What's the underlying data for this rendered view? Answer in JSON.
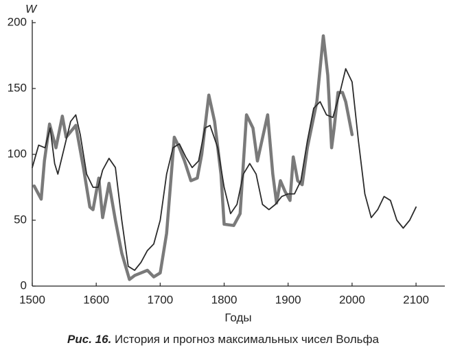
{
  "chart_data": {
    "type": "line",
    "y_label": "W",
    "x_label": "Годы",
    "caption": {
      "label": "Рис. 16.",
      "text": "История и прогноз максимальных чисел Вольфа"
    },
    "xlim": [
      1500,
      2145
    ],
    "xticks": [
      1500,
      1600,
      1700,
      1800,
      1900,
      2000,
      2100
    ],
    "ylim": [
      0,
      200
    ],
    "yticks": [
      0,
      50,
      100,
      150,
      200
    ],
    "series": [
      {
        "color": "#7a7a7a",
        "width": 4.5,
        "x": [
          1503,
          1514,
          1519,
          1527,
          1537,
          1547,
          1553,
          1568,
          1580,
          1590,
          1595,
          1604,
          1610,
          1620,
          1630,
          1640,
          1652,
          1660,
          1670,
          1680,
          1690,
          1700,
          1710,
          1722,
          1730,
          1738,
          1748,
          1758,
          1765,
          1776,
          1785,
          1795,
          1800,
          1815,
          1825,
          1835,
          1845,
          1852,
          1868,
          1876,
          1882,
          1888,
          1895,
          1903,
          1908,
          1915,
          1922,
          1930,
          1945,
          1955,
          1962,
          1968,
          1972,
          1978,
          1985,
          1990,
          2000
        ],
        "values": [
          76,
          66,
          95,
          123,
          105,
          129,
          113,
          122,
          90,
          60,
          58,
          82,
          52,
          78,
          50,
          25,
          5,
          8,
          10,
          12,
          7,
          10,
          40,
          113,
          105,
          95,
          80,
          82,
          100,
          145,
          125,
          85,
          47,
          46,
          55,
          130,
          120,
          95,
          130,
          85,
          63,
          80,
          72,
          65,
          98,
          80,
          77,
          105,
          140,
          190,
          160,
          105,
          120,
          147,
          147,
          140,
          115
        ]
      },
      {
        "color": "#2a2a2a",
        "width": 1.8,
        "x": [
          1500,
          1510,
          1520,
          1528,
          1535,
          1540,
          1550,
          1560,
          1568,
          1575,
          1585,
          1595,
          1603,
          1610,
          1620,
          1630,
          1640,
          1650,
          1660,
          1670,
          1680,
          1690,
          1700,
          1710,
          1720,
          1730,
          1740,
          1750,
          1760,
          1770,
          1778,
          1790,
          1800,
          1810,
          1820,
          1830,
          1840,
          1850,
          1860,
          1870,
          1880,
          1890,
          1900,
          1910,
          1920,
          1930,
          1940,
          1950,
          1960,
          1970,
          1980,
          1990,
          2000,
          2010,
          2020,
          2030,
          2040,
          2050,
          2060,
          2070,
          2080,
          2090,
          2100
        ],
        "values": [
          90,
          107,
          105,
          120,
          93,
          85,
          105,
          125,
          130,
          115,
          85,
          75,
          75,
          88,
          97,
          90,
          50,
          15,
          12,
          18,
          27,
          32,
          50,
          85,
          105,
          108,
          98,
          90,
          95,
          120,
          122,
          105,
          75,
          55,
          62,
          85,
          93,
          85,
          62,
          58,
          62,
          68,
          70,
          70,
          80,
          110,
          135,
          140,
          130,
          128,
          145,
          165,
          155,
          110,
          70,
          52,
          58,
          68,
          65,
          50,
          44,
          50,
          60
        ]
      }
    ]
  }
}
